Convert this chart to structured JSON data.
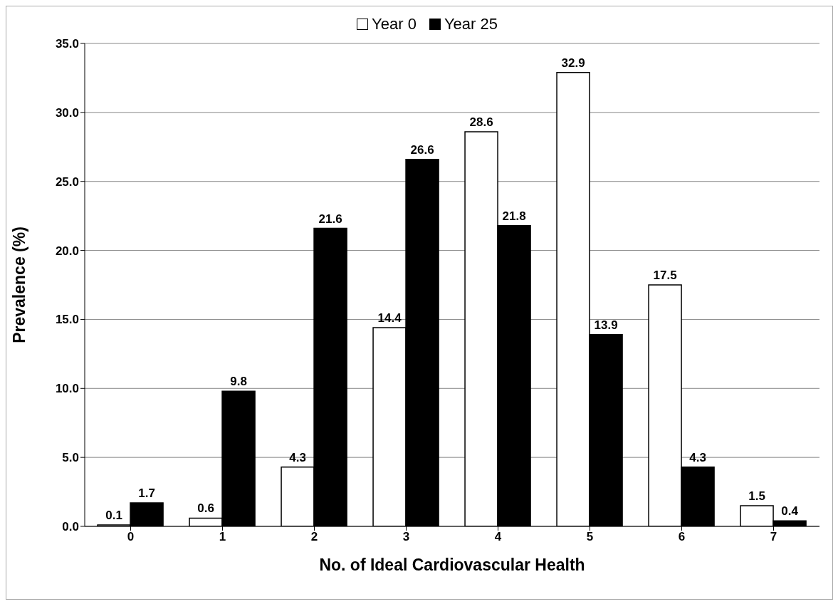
{
  "chart_data": {
    "type": "bar",
    "xlabel": "No. of Ideal Cardiovascular Health",
    "ylabel": "Prevalence (%)",
    "categories": [
      "0",
      "1",
      "2",
      "3",
      "4",
      "5",
      "6",
      "7"
    ],
    "series": [
      {
        "name": "Year 0",
        "color": "#ffffff",
        "values": [
          0.1,
          0.6,
          4.3,
          14.4,
          28.6,
          32.9,
          17.5,
          1.5
        ]
      },
      {
        "name": "Year 25",
        "color": "#000000",
        "values": [
          1.7,
          9.8,
          21.6,
          26.6,
          21.8,
          13.9,
          4.3,
          0.4
        ]
      }
    ],
    "ylim": [
      0,
      35
    ],
    "yticks": [
      {
        "value": 0,
        "label": "0.0"
      },
      {
        "value": 5,
        "label": "5.0"
      },
      {
        "value": 10,
        "label": "10.0"
      },
      {
        "value": 15,
        "label": "15.0"
      },
      {
        "value": 20,
        "label": "20.0"
      },
      {
        "value": 25,
        "label": "25.0"
      },
      {
        "value": 30,
        "label": "30.0"
      },
      {
        "value": 35,
        "label": "35.0"
      }
    ],
    "grid": "y",
    "legend": "top",
    "data_labels": true
  }
}
